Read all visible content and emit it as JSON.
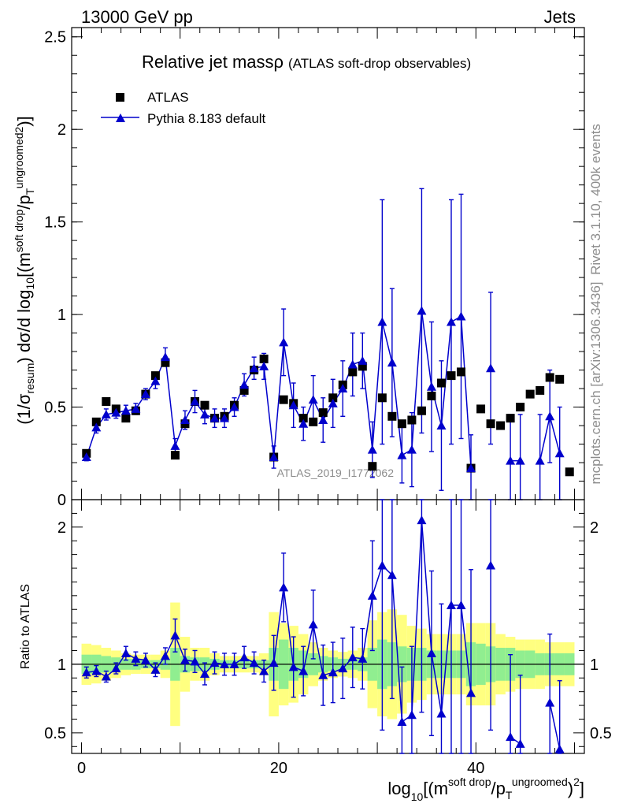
{
  "header": {
    "energy_label": "13000 GeV pp",
    "process_label": "Jets"
  },
  "side_labels": {
    "rivet": "Rivet 3.1.10,  400k events",
    "mcplots": "mcplots.cern.ch [arXiv:1306.3436]"
  },
  "watermark": "ATLAS_2019_I1772062",
  "colors": {
    "data": "#000000",
    "mc": "#0000cc",
    "band_inner": "#90ee90",
    "band_outer": "#ffff80"
  },
  "chart_data": [
    {
      "type": "scatter",
      "title": "Relative jet massρ",
      "subtitle": "(ATLAS soft-drop observables)",
      "ylabel": "(1/σresum) dσ/d log10[(m soft drop / pT ungroomed)2]",
      "ylim": [
        0,
        2.55
      ],
      "xlim": [
        -1,
        51
      ],
      "yticks": [
        0,
        0.5,
        1,
        1.5,
        2,
        2.5
      ],
      "ytick_labels": [
        "0",
        "0.5",
        "1",
        "1.5",
        "2",
        "2.5"
      ],
      "legend": {
        "placement": "top-left",
        "entries": [
          "ATLAS",
          "Pythia 8.183 default"
        ]
      },
      "series": [
        {
          "name": "ATLAS",
          "x": [
            0.5,
            1.5,
            2.5,
            3.5,
            4.5,
            5.5,
            6.5,
            7.5,
            8.5,
            9.5,
            10.5,
            11.5,
            12.5,
            13.5,
            14.5,
            15.5,
            16.5,
            17.5,
            18.5,
            19.5,
            20.5,
            21.5,
            22.5,
            23.5,
            24.5,
            25.5,
            26.5,
            27.5,
            28.5,
            29.5,
            30.5,
            31.5,
            32.5,
            33.5,
            34.5,
            35.5,
            36.5,
            37.5,
            38.5,
            39.5,
            40.5,
            41.5,
            42.5,
            43.5,
            44.5,
            45.5,
            46.5,
            47.5,
            48.5,
            49.5
          ],
          "values": [
            0.25,
            0.42,
            0.53,
            0.49,
            0.44,
            0.48,
            0.57,
            0.67,
            0.74,
            0.24,
            0.41,
            0.53,
            0.51,
            0.44,
            0.45,
            0.51,
            0.59,
            0.7,
            0.76,
            0.23,
            0.54,
            0.52,
            0.44,
            0.42,
            0.47,
            0.55,
            0.62,
            0.69,
            0.72,
            0.18,
            0.55,
            0.45,
            0.41,
            0.43,
            0.48,
            0.56,
            0.63,
            0.67,
            0.69,
            0.17,
            0.49,
            0.41,
            0.4,
            0.44,
            0.5,
            0.57,
            0.59,
            0.66,
            0.65,
            0.15
          ]
        },
        {
          "name": "Pythia 8.183 default",
          "x": [
            0.5,
            1.5,
            2.5,
            3.5,
            4.5,
            5.5,
            6.5,
            7.5,
            8.5,
            9.5,
            10.5,
            11.5,
            12.5,
            13.5,
            14.5,
            15.5,
            16.5,
            17.5,
            18.5,
            19.5,
            20.5,
            21.5,
            22.5,
            23.5,
            24.5,
            25.5,
            26.5,
            27.5,
            28.5,
            29.5,
            30.5,
            31.5,
            32.5,
            33.5,
            34.5,
            35.5,
            36.5,
            37.5,
            38.5,
            39.5,
            41.5,
            43.5,
            44.5,
            46.5,
            47.5,
            48.5
          ],
          "values": [
            0.23,
            0.39,
            0.46,
            0.47,
            0.48,
            0.49,
            0.57,
            0.64,
            0.77,
            0.29,
            0.43,
            0.53,
            0.46,
            0.44,
            0.44,
            0.5,
            0.62,
            0.71,
            0.72,
            0.23,
            0.85,
            0.51,
            0.41,
            0.54,
            0.43,
            0.52,
            0.6,
            0.73,
            0.75,
            0.27,
            0.96,
            0.74,
            0.24,
            0.27,
            1.02,
            0.61,
            0.4,
            0.96,
            0.99,
            0.17,
            0.71,
            0.21,
            0.21,
            0.21,
            0.45,
            0.25
          ],
          "errors": [
            0.02,
            0.03,
            0.03,
            0.03,
            0.03,
            0.03,
            0.03,
            0.04,
            0.05,
            0.04,
            0.05,
            0.06,
            0.05,
            0.05,
            0.05,
            0.05,
            0.06,
            0.06,
            0.07,
            0.06,
            0.18,
            0.12,
            0.09,
            0.13,
            0.12,
            0.13,
            0.15,
            0.17,
            0.15,
            0.15,
            0.66,
            0.4,
            0.15,
            0.2,
            0.66,
            0.35,
            0.35,
            0.66,
            0.66,
            0.18,
            0.41,
            0.25,
            0.25,
            0.25,
            0.25,
            0.25
          ]
        }
      ]
    },
    {
      "type": "line",
      "ylabel": "Ratio to ATLAS",
      "xlabel": "log10[(m soft drop / pT ungroomed)2]",
      "ylim": [
        0.35,
        2.2
      ],
      "xlim": [
        -1,
        51
      ],
      "xticks": [
        0,
        20,
        40
      ],
      "xtick_labels": [
        "0",
        "20",
        "40"
      ],
      "yticks": [
        0.5,
        1,
        2
      ],
      "ytick_labels": [
        "0.5",
        "1",
        "2"
      ],
      "band_inner_halfwidth": [
        0.07,
        0.07,
        0.06,
        0.05,
        0.04,
        0.04,
        0.03,
        0.03,
        0.04,
        0.12,
        0.06,
        0.05,
        0.05,
        0.04,
        0.03,
        0.03,
        0.03,
        0.03,
        0.03,
        0.12,
        0.18,
        0.12,
        0.1,
        0.08,
        0.06,
        0.05,
        0.04,
        0.04,
        0.05,
        0.12,
        0.18,
        0.16,
        0.13,
        0.12,
        0.12,
        0.1,
        0.1,
        0.1,
        0.1,
        0.16,
        0.15,
        0.13,
        0.12,
        0.12,
        0.1,
        0.1,
        0.08,
        0.08,
        0.08,
        0.08
      ],
      "band_outer_halfwidth": [
        0.15,
        0.14,
        0.12,
        0.1,
        0.08,
        0.07,
        0.07,
        0.07,
        0.1,
        0.45,
        0.2,
        0.12,
        0.12,
        0.08,
        0.06,
        0.06,
        0.06,
        0.06,
        0.08,
        0.38,
        0.3,
        0.28,
        0.22,
        0.16,
        0.12,
        0.1,
        0.09,
        0.1,
        0.12,
        0.32,
        0.38,
        0.4,
        0.36,
        0.28,
        0.26,
        0.22,
        0.22,
        0.22,
        0.22,
        0.3,
        0.3,
        0.3,
        0.22,
        0.2,
        0.18,
        0.18,
        0.18,
        0.16,
        0.16,
        0.16
      ],
      "series": [
        {
          "name": "Pythia 8.183 default / ATLAS",
          "x": [
            0.5,
            1.5,
            2.5,
            3.5,
            4.5,
            5.5,
            6.5,
            7.5,
            8.5,
            9.5,
            10.5,
            11.5,
            12.5,
            13.5,
            14.5,
            15.5,
            16.5,
            17.5,
            18.5,
            19.5,
            20.5,
            21.5,
            22.5,
            23.5,
            24.5,
            25.5,
            26.5,
            27.5,
            28.5,
            29.5,
            30.5,
            31.5,
            32.5,
            33.5,
            34.5,
            35.5,
            36.5,
            37.5,
            38.5,
            39.5,
            41.5,
            43.5,
            44.5,
            47.5,
            48.5
          ],
          "values": [
            0.94,
            0.95,
            0.91,
            0.97,
            1.08,
            1.04,
            1.03,
            0.96,
            1.06,
            1.21,
            1.03,
            1.02,
            0.93,
            1.01,
            1.0,
            1.0,
            1.05,
            1.01,
            0.95,
            1.01,
            1.56,
            0.98,
            0.95,
            1.29,
            0.92,
            0.94,
            0.97,
            1.05,
            1.04,
            1.5,
            1.72,
            1.65,
            0.58,
            0.63,
            2.05,
            1.08,
            0.64,
            1.43,
            1.43,
            0.79,
            1.72,
            0.47,
            0.42,
            0.72,
            0.38
          ],
          "errors": [
            0.04,
            0.04,
            0.04,
            0.04,
            0.05,
            0.05,
            0.05,
            0.05,
            0.06,
            0.12,
            0.08,
            0.08,
            0.08,
            0.08,
            0.08,
            0.08,
            0.08,
            0.08,
            0.08,
            0.2,
            0.25,
            0.22,
            0.18,
            0.25,
            0.22,
            0.22,
            0.22,
            0.22,
            0.22,
            0.4,
            1.2,
            0.9,
            0.4,
            0.5,
            1.4,
            0.6,
            0.8,
            1.3,
            1.4,
            0.9,
            1.2,
            0.6,
            0.5,
            0.5,
            0.5
          ]
        }
      ]
    }
  ]
}
